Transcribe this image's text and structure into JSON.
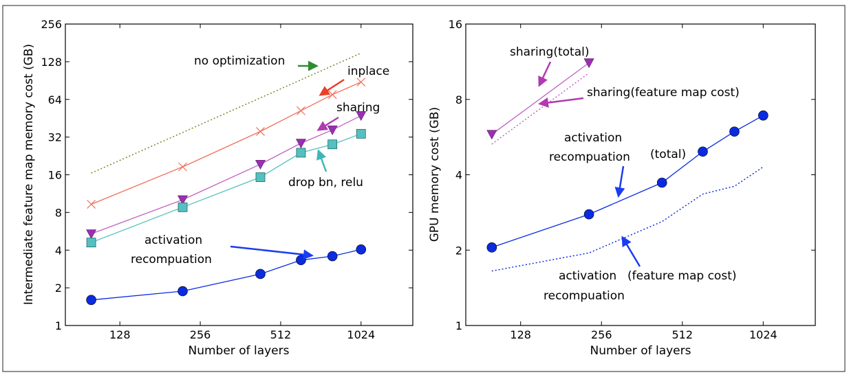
{
  "chart_data": [
    {
      "type": "line",
      "title": "",
      "xlabel": "Number of layers",
      "ylabel": "Intermediate feature map memory cost (GB)",
      "x_scale": "log2",
      "y_scale": "log2",
      "xlim": [
        80,
        1600
      ],
      "ylim": [
        1,
        256
      ],
      "xticks": [
        "128",
        "256",
        "512",
        "1024"
      ],
      "yticks": [
        "1",
        "2",
        "4",
        "8",
        "16",
        "32",
        "64",
        "128",
        "256"
      ],
      "series": [
        {
          "name": "no optimization",
          "color": "#6b8e23",
          "style": "dotted",
          "marker": "none",
          "x": [
            100,
            1024
          ],
          "y": [
            16.5,
            150
          ]
        },
        {
          "name": "inplace",
          "color": "#f06e5a",
          "style": "solid",
          "marker": "x",
          "x": [
            100,
            220,
            430,
            610,
            800,
            1024
          ],
          "y": [
            9.3,
            18.5,
            35.5,
            52,
            70,
            88
          ]
        },
        {
          "name": "sharing",
          "color": "#c061c0",
          "style": "solid",
          "marker": "triangle-down",
          "x": [
            100,
            220,
            430,
            610,
            800,
            1024
          ],
          "y": [
            5.4,
            10.1,
            19.4,
            28.6,
            36.5,
            47.5
          ]
        },
        {
          "name": "drop bn, relu",
          "color": "#56bfbf",
          "style": "solid",
          "marker": "square",
          "x": [
            100,
            220,
            430,
            610,
            800,
            1024
          ],
          "y": [
            4.6,
            8.8,
            15.3,
            24,
            28,
            34
          ]
        },
        {
          "name": "activation recompuation",
          "color": "#0a2be0",
          "style": "solid",
          "marker": "circle",
          "x": [
            100,
            220,
            430,
            610,
            800,
            1024
          ],
          "y": [
            1.6,
            1.88,
            2.58,
            3.33,
            3.58,
            4.05
          ]
        }
      ],
      "annotations": [
        {
          "text": "no optimization"
        },
        {
          "text": "inplace"
        },
        {
          "text": "sharing"
        },
        {
          "text": "drop bn, relu"
        },
        {
          "text": "activation"
        },
        {
          "text": "recompuation"
        }
      ]
    },
    {
      "type": "line",
      "title": "",
      "xlabel": "Number of layers",
      "ylabel": "GPU memory cost (GB)",
      "x_scale": "log2",
      "y_scale": "log2",
      "xlim": [
        80,
        1600
      ],
      "ylim": [
        1,
        16
      ],
      "xticks": [
        "128",
        "256",
        "512",
        "1024"
      ],
      "yticks": [
        "1",
        "2",
        "4",
        "8",
        "16"
      ],
      "series": [
        {
          "name": "sharing(total)",
          "color": "#c061c0",
          "style": "solid",
          "marker": "triangle-down",
          "x": [
            100,
            230
          ],
          "y": [
            5.8,
            11.2
          ]
        },
        {
          "name": "sharing(feature map cost)",
          "color": "#c061c0",
          "style": "dotted",
          "marker": "none",
          "x": [
            100,
            230
          ],
          "y": [
            5.3,
            10.2
          ]
        },
        {
          "name": "activation recompuation (total)",
          "color": "#0a2be0",
          "style": "solid",
          "marker": "circle",
          "x": [
            100,
            230,
            430,
            610,
            800,
            1024
          ],
          "y": [
            2.05,
            2.78,
            3.72,
            4.95,
            5.95,
            6.9
          ]
        },
        {
          "name": "activation recompuation (feature map cost)",
          "color": "#0a2be0",
          "style": "dotted",
          "marker": "none",
          "x": [
            100,
            230,
            430,
            610,
            800,
            1024
          ],
          "y": [
            1.65,
            1.95,
            2.6,
            3.35,
            3.6,
            4.3
          ]
        }
      ],
      "annotations": [
        {
          "text": "sharing(total)"
        },
        {
          "text": "sharing(feature map cost)"
        },
        {
          "text": "activation"
        },
        {
          "text": "recompuation"
        },
        {
          "text": "(total)"
        },
        {
          "text": "activation"
        },
        {
          "text": "recompuation"
        },
        {
          "text": "(feature map cost)"
        }
      ]
    }
  ]
}
